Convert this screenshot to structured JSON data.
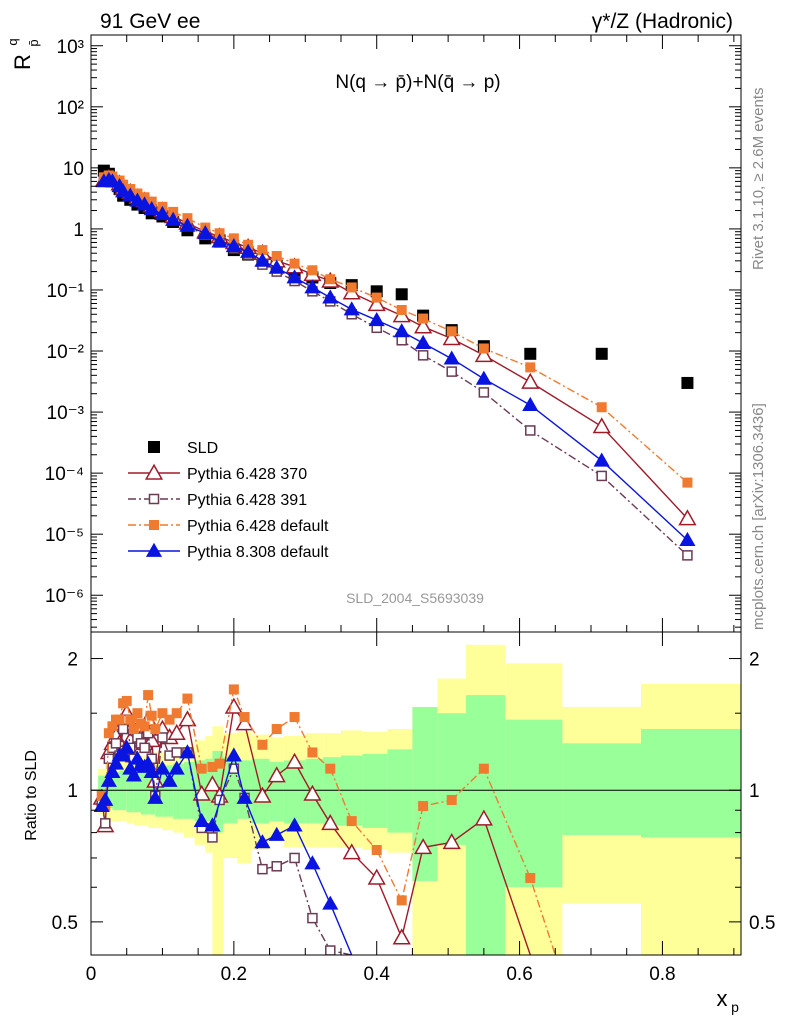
{
  "header": {
    "left": "91 GeV ee",
    "right": "γ*/Z (Hadronic)"
  },
  "labels": {
    "process": "N(q → p̄)+N(q̄ → p)",
    "analysis_id": "SLD_2004_S5693039",
    "side_top": "Rivet 3.1.10, ≥ 2.6M events",
    "side_bottom": "mcplots.cern.ch [arXiv:1306.3436]",
    "ylabel_main": "R",
    "ylabel_main_sup": "q",
    "ylabel_main_sub": "p̄",
    "ylabel_ratio": "Ratio to SLD",
    "xlabel": "x",
    "xlabel_sub": "p"
  },
  "legend": [
    {
      "label": "SLD",
      "color": "#000000",
      "marker": "square-filled",
      "line": "none"
    },
    {
      "label": "Pythia 6.428 370",
      "color": "#a01b2a",
      "marker": "triangle-open",
      "line": "solid"
    },
    {
      "label": "Pythia 6.428 391",
      "color": "#6b3a55",
      "marker": "square-open",
      "line": "dashdot"
    },
    {
      "label": "Pythia 6.428 default",
      "color": "#f07a30",
      "marker": "square-filled",
      "line": "dashdot"
    },
    {
      "label": "Pythia 8.308 default",
      "color": "#0a14e0",
      "marker": "triangle-filled",
      "line": "solid"
    }
  ],
  "chart_data": [
    {
      "type": "scatter",
      "panel": "main",
      "xlim": [
        0,
        0.91
      ],
      "ylim": [
        2.5e-07,
        1500
      ],
      "yscale": "log",
      "yticks": [
        1e-06,
        1e-05,
        0.0001,
        0.001,
        0.01,
        0.1,
        1,
        10,
        100,
        1000
      ],
      "ytick_labels": [
        "10⁻⁶",
        "10⁻⁵",
        "10⁻⁴",
        "10⁻³",
        "10⁻²",
        "10⁻¹",
        "1",
        "10",
        "10²",
        "10³"
      ],
      "series": [
        {
          "name": "SLD",
          "x": [
            0.018,
            0.025,
            0.03,
            0.04,
            0.045,
            0.055,
            0.065,
            0.075,
            0.085,
            0.1,
            0.115,
            0.135,
            0.16,
            0.18,
            0.2,
            0.22,
            0.24,
            0.26,
            0.285,
            0.31,
            0.335,
            0.365,
            0.4,
            0.435,
            0.465,
            0.505,
            0.55,
            0.615,
            0.715,
            0.835
          ],
          "y": [
            9,
            8,
            6,
            4.5,
            3.5,
            3,
            2.5,
            2.2,
            1.8,
            1.6,
            1.3,
            0.95,
            0.7,
            0.65,
            0.45,
            0.38,
            0.3,
            0.25,
            0.17,
            0.16,
            0.13,
            0.12,
            0.095,
            0.085,
            0.038,
            0.022,
            0.012,
            0.009,
            0.009,
            0.003
          ]
        },
        {
          "name": "Pythia 6.428 370",
          "x": [
            0.018,
            0.025,
            0.03,
            0.04,
            0.045,
            0.055,
            0.065,
            0.075,
            0.085,
            0.1,
            0.115,
            0.135,
            0.16,
            0.18,
            0.2,
            0.22,
            0.24,
            0.26,
            0.285,
            0.31,
            0.335,
            0.365,
            0.4,
            0.435,
            0.465,
            0.505,
            0.55,
            0.615,
            0.715,
            0.835
          ],
          "y": [
            6.3,
            6.8,
            6.5,
            5.5,
            4.6,
            4,
            3.3,
            2.9,
            2.4,
            2,
            1.6,
            1.25,
            0.9,
            0.75,
            0.6,
            0.5,
            0.4,
            0.3,
            0.24,
            0.18,
            0.14,
            0.09,
            0.058,
            0.038,
            0.025,
            0.016,
            0.0085,
            0.0031,
            0.00058,
            1.8e-05
          ]
        },
        {
          "name": "Pythia 6.428 391",
          "x": [
            0.018,
            0.025,
            0.03,
            0.04,
            0.045,
            0.055,
            0.065,
            0.075,
            0.085,
            0.1,
            0.115,
            0.135,
            0.16,
            0.18,
            0.2,
            0.22,
            0.24,
            0.26,
            0.285,
            0.31,
            0.335,
            0.365,
            0.4,
            0.435,
            0.465,
            0.505,
            0.55,
            0.615,
            0.715,
            0.835
          ],
          "y": [
            6.2,
            6.6,
            6.3,
            5.2,
            4.3,
            3.6,
            3,
            2.6,
            2.1,
            1.8,
            1.45,
            1.1,
            0.8,
            0.6,
            0.48,
            0.38,
            0.26,
            0.2,
            0.14,
            0.095,
            0.065,
            0.04,
            0.024,
            0.015,
            0.0085,
            0.0046,
            0.0021,
            0.0005,
            9e-05,
            4.5e-06
          ]
        },
        {
          "name": "Pythia 6.428 default",
          "x": [
            0.018,
            0.025,
            0.03,
            0.04,
            0.045,
            0.055,
            0.065,
            0.075,
            0.085,
            0.1,
            0.115,
            0.135,
            0.16,
            0.18,
            0.2,
            0.22,
            0.24,
            0.26,
            0.285,
            0.31,
            0.335,
            0.365,
            0.4,
            0.435,
            0.465,
            0.505,
            0.55,
            0.615,
            0.715,
            0.835
          ],
          "y": [
            7,
            7.5,
            7.2,
            6.2,
            5.3,
            4.5,
            3.8,
            3.3,
            2.8,
            2.3,
            1.9,
            1.5,
            1.05,
            0.85,
            0.7,
            0.55,
            0.45,
            0.36,
            0.27,
            0.21,
            0.15,
            0.11,
            0.075,
            0.047,
            0.034,
            0.021,
            0.011,
            0.0054,
            0.0012,
            7e-05
          ]
        },
        {
          "name": "Pythia 8.308 default",
          "x": [
            0.018,
            0.025,
            0.03,
            0.04,
            0.045,
            0.055,
            0.065,
            0.075,
            0.085,
            0.1,
            0.115,
            0.135,
            0.16,
            0.18,
            0.2,
            0.22,
            0.24,
            0.26,
            0.285,
            0.31,
            0.335,
            0.365,
            0.4,
            0.435,
            0.465,
            0.505,
            0.55,
            0.615,
            0.715,
            0.835
          ],
          "y": [
            6,
            6.3,
            6,
            5,
            4.1,
            3.5,
            2.9,
            2.5,
            2.1,
            1.75,
            1.4,
            1.12,
            0.85,
            0.62,
            0.52,
            0.42,
            0.3,
            0.23,
            0.16,
            0.11,
            0.075,
            0.048,
            0.032,
            0.021,
            0.0135,
            0.0075,
            0.0035,
            0.0013,
            0.00016,
            8e-06
          ]
        }
      ]
    },
    {
      "type": "line",
      "panel": "ratio",
      "xlim": [
        0,
        0.91
      ],
      "ylim": [
        0.42,
        2.3
      ],
      "yscale": "log",
      "yticks": [
        0.5,
        1,
        2
      ],
      "ytick_labels": [
        "0.5",
        "1",
        "2"
      ],
      "xticks": [
        0,
        0.2,
        0.4,
        0.6,
        0.8
      ],
      "xtick_labels": [
        "0",
        "0.2",
        "0.4",
        "0.6",
        "0.8"
      ],
      "bands": [
        [
          0.01,
          0.02,
          0.92,
          1.08,
          0.88,
          1.12
        ],
        [
          0.02,
          0.03,
          0.91,
          1.09,
          0.85,
          1.15
        ],
        [
          0.03,
          0.04,
          0.9,
          1.1,
          0.85,
          1.16
        ],
        [
          0.04,
          0.05,
          0.9,
          1.11,
          0.85,
          1.17
        ],
        [
          0.05,
          0.06,
          0.89,
          1.12,
          0.84,
          1.18
        ],
        [
          0.06,
          0.07,
          0.89,
          1.12,
          0.83,
          1.19
        ],
        [
          0.07,
          0.08,
          0.88,
          1.13,
          0.83,
          1.2
        ],
        [
          0.08,
          0.09,
          0.88,
          1.13,
          0.82,
          1.21
        ],
        [
          0.09,
          0.1,
          0.87,
          1.14,
          0.82,
          1.22
        ],
        [
          0.1,
          0.115,
          0.87,
          1.14,
          0.81,
          1.22
        ],
        [
          0.115,
          0.13,
          0.86,
          1.15,
          0.8,
          1.24
        ],
        [
          0.13,
          0.145,
          0.86,
          1.16,
          0.78,
          1.26
        ],
        [
          0.145,
          0.16,
          0.85,
          1.17,
          0.75,
          1.3
        ],
        [
          0.16,
          0.17,
          0.85,
          1.18,
          0.72,
          1.33
        ],
        [
          0.17,
          0.185,
          0.8,
          1.23,
          0.3,
          1.4
        ],
        [
          0.185,
          0.205,
          0.84,
          1.19,
          0.7,
          1.35
        ],
        [
          0.205,
          0.225,
          0.86,
          1.17,
          0.68,
          1.36
        ],
        [
          0.225,
          0.25,
          0.84,
          1.18,
          0.73,
          1.34
        ],
        [
          0.25,
          0.27,
          0.85,
          1.16,
          0.77,
          1.32
        ],
        [
          0.27,
          0.3,
          0.84,
          1.17,
          0.74,
          1.33
        ],
        [
          0.3,
          0.325,
          0.84,
          1.18,
          0.74,
          1.35
        ],
        [
          0.325,
          0.35,
          0.83,
          1.19,
          0.74,
          1.35
        ],
        [
          0.35,
          0.38,
          0.83,
          1.2,
          0.74,
          1.37
        ],
        [
          0.38,
          0.415,
          0.82,
          1.21,
          0.73,
          1.36
        ],
        [
          0.415,
          0.45,
          0.8,
          1.24,
          0.72,
          1.38
        ],
        [
          0.45,
          0.485,
          0.62,
          1.55,
          0.3,
          1.55
        ],
        [
          0.485,
          0.525,
          0.75,
          1.5,
          0.3,
          1.8
        ],
        [
          0.525,
          0.58,
          0.3,
          1.65,
          0.3,
          2.15
        ],
        [
          0.58,
          0.66,
          0.6,
          1.45,
          0.3,
          1.95
        ],
        [
          0.66,
          0.77,
          0.79,
          1.28,
          0.55,
          1.55
        ],
        [
          0.77,
          0.91,
          0.78,
          1.38,
          0.3,
          1.75
        ]
      ],
      "band_fields": [
        "x_low",
        "x_high",
        "inner_low",
        "inner_high",
        "outer_low",
        "outer_high"
      ],
      "reference": 1,
      "series": [
        {
          "name": "SLD",
          "x": [],
          "y": []
        },
        {
          "name": "Pythia 6.428 370",
          "x": [
            0.015,
            0.02,
            0.025,
            0.03,
            0.035,
            0.04,
            0.045,
            0.05,
            0.055,
            0.06,
            0.065,
            0.07,
            0.075,
            0.08,
            0.085,
            0.09,
            0.1,
            0.11,
            0.12,
            0.135,
            0.155,
            0.17,
            0.18,
            0.2,
            0.215,
            0.24,
            0.26,
            0.285,
            0.31,
            0.335,
            0.365,
            0.4,
            0.435,
            0.465,
            0.505,
            0.55,
            0.615
          ],
          "y": [
            0.96,
            0.83,
            1.22,
            1.28,
            1.33,
            1.28,
            1.42,
            1.5,
            1.3,
            1.2,
            1.38,
            1.32,
            1.28,
            1.45,
            1.3,
            1.05,
            1.38,
            1.32,
            1.35,
            1.45,
            0.98,
            1.03,
            0.97,
            1.55,
            1.42,
            0.97,
            1.08,
            1.16,
            0.98,
            0.84,
            0.72,
            0.63,
            0.46,
            0.74,
            0.76,
            0.86,
            0.35
          ]
        },
        {
          "name": "Pythia 6.428 391",
          "x": [
            0.015,
            0.02,
            0.025,
            0.03,
            0.035,
            0.04,
            0.045,
            0.05,
            0.055,
            0.06,
            0.065,
            0.07,
            0.075,
            0.08,
            0.085,
            0.09,
            0.1,
            0.11,
            0.12,
            0.135,
            0.155,
            0.17,
            0.18,
            0.2,
            0.215,
            0.24,
            0.26,
            0.285,
            0.31,
            0.335,
            0.365
          ],
          "y": [
            0.93,
            0.84,
            1.18,
            1.25,
            1.28,
            1.2,
            1.38,
            1.45,
            1.25,
            1.18,
            1.32,
            1.28,
            1.25,
            1.35,
            1.18,
            0.97,
            1.32,
            1.2,
            1.22,
            1.22,
            0.82,
            0.78,
            0.95,
            1.12,
            0.96,
            0.66,
            0.67,
            0.7,
            0.51,
            0.43,
            0.3
          ]
        },
        {
          "name": "Pythia 6.428 default",
          "x": [
            0.015,
            0.02,
            0.025,
            0.03,
            0.035,
            0.04,
            0.045,
            0.05,
            0.055,
            0.06,
            0.065,
            0.07,
            0.075,
            0.08,
            0.085,
            0.09,
            0.1,
            0.11,
            0.12,
            0.135,
            0.155,
            0.17,
            0.18,
            0.2,
            0.215,
            0.24,
            0.26,
            0.285,
            0.31,
            0.335,
            0.365,
            0.4,
            0.435,
            0.465,
            0.505,
            0.55,
            0.615,
            0.65
          ],
          "y": [
            0.97,
            0.92,
            1.35,
            1.4,
            1.45,
            1.45,
            1.58,
            1.6,
            1.45,
            1.38,
            1.5,
            1.42,
            1.4,
            1.65,
            1.48,
            1.38,
            1.5,
            1.45,
            1.5,
            1.62,
            1.12,
            1.13,
            1.15,
            1.7,
            1.47,
            1.27,
            1.38,
            1.47,
            1.22,
            1.12,
            0.85,
            0.73,
            0.56,
            0.92,
            0.95,
            1.12,
            0.63,
            0.38
          ]
        },
        {
          "name": "Pythia 8.308 default",
          "x": [
            0.015,
            0.02,
            0.025,
            0.03,
            0.035,
            0.04,
            0.045,
            0.05,
            0.055,
            0.06,
            0.065,
            0.07,
            0.075,
            0.08,
            0.085,
            0.09,
            0.1,
            0.11,
            0.12,
            0.135,
            0.155,
            0.17,
            0.2,
            0.215,
            0.24,
            0.26,
            0.285,
            0.31,
            0.335,
            0.365
          ],
          "y": [
            0.92,
            0.95,
            1.05,
            1.1,
            1.15,
            1.2,
            1.2,
            1.25,
            1.12,
            1.08,
            1.18,
            1.14,
            1.13,
            1.15,
            1.1,
            0.96,
            1.12,
            1.05,
            1.12,
            1.22,
            0.85,
            0.83,
            1.2,
            0.96,
            0.76,
            0.79,
            0.83,
            0.68,
            0.55,
            0.41
          ]
        }
      ]
    }
  ]
}
